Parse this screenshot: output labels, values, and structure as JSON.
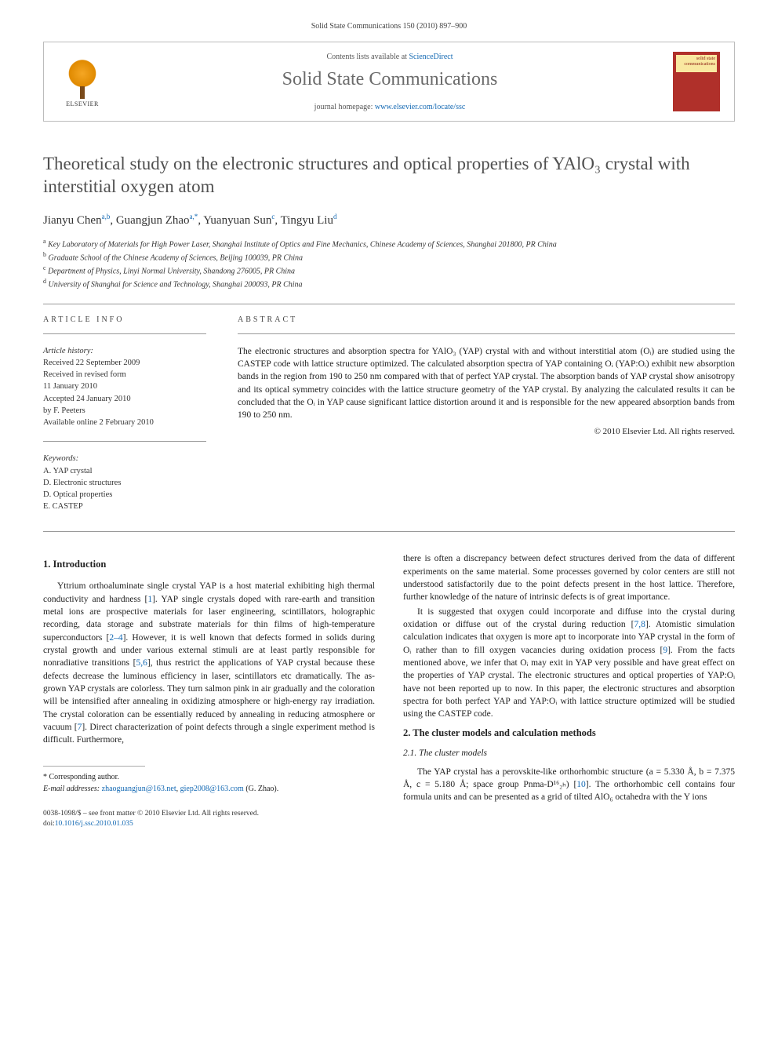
{
  "topLine": "Solid State Communications 150 (2010) 897–900",
  "header": {
    "contentsPrefix": "Contents lists available at ",
    "contentsLink": "ScienceDirect",
    "journalName": "Solid State Communications",
    "homepagePrefix": "journal homepage: ",
    "homepageLink": "www.elsevier.com/locate/ssc",
    "elsevier": "ELSEVIER",
    "coverText": "solid state communications"
  },
  "title": "Theoretical study on the electronic structures and optical properties of YAlO₃ crystal with interstitial oxygen atom",
  "authors": [
    {
      "name": "Jianyu Chen",
      "sup": "a,b"
    },
    {
      "name": "Guangjun Zhao",
      "sup": "a,*"
    },
    {
      "name": "Yuanyuan Sun",
      "sup": "c"
    },
    {
      "name": "Tingyu Liu",
      "sup": "d"
    }
  ],
  "affiliations": [
    {
      "sup": "a",
      "text": "Key Laboratory of Materials for High Power Laser, Shanghai Institute of Optics and Fine Mechanics, Chinese Academy of Sciences, Shanghai 201800, PR China"
    },
    {
      "sup": "b",
      "text": "Graduate School of the Chinese Academy of Sciences, Beijing 100039, PR China"
    },
    {
      "sup": "c",
      "text": "Department of Physics, Linyi Normal University, Shandong 276005, PR China"
    },
    {
      "sup": "d",
      "text": "University of Shanghai for Science and Technology, Shanghai 200093, PR China"
    }
  ],
  "infoLabel": "ARTICLE INFO",
  "abstractLabel": "ABSTRACT",
  "history": {
    "hdr": "Article history:",
    "lines": [
      "Received 22 September 2009",
      "Received in revised form",
      "11 January 2010",
      "Accepted 24 January 2010",
      "by F. Peeters",
      "Available online 2 February 2010"
    ]
  },
  "keywords": {
    "hdr": "Keywords:",
    "lines": [
      "A. YAP crystal",
      "D. Electronic structures",
      "D. Optical properties",
      "E. CASTEP"
    ]
  },
  "abstract": "The electronic structures and absorption spectra for YAlO₃ (YAP) crystal with and without interstitial atom (Oᵢ) are studied using the CASTEP code with lattice structure optimized. The calculated absorption spectra of YAP containing Oᵢ (YAP:Oᵢ) exhibit new absorption bands in the region from 190 to 250 nm compared with that of perfect YAP crystal. The absorption bands of YAP crystal show anisotropy and its optical symmetry coincides with the lattice structure geometry of the YAP crystal. By analyzing the calculated results it can be concluded that the Oᵢ in YAP cause significant lattice distortion around it and is responsible for the new appeared absorption bands from 190 to 250 nm.",
  "copyright": "© 2010 Elsevier Ltd. All rights reserved.",
  "sections": {
    "introHdr": "1. Introduction",
    "introP1": "Yttrium orthoaluminate single crystal YAP is a host material exhibiting high thermal conductivity and hardness [1]. YAP single crystals doped with rare-earth and transition metal ions are prospective materials for laser engineering, scintillators, holographic recording, data storage and substrate materials for thin films of high-temperature superconductors [2–4]. However, it is well known that defects formed in solids during crystal growth and under various external stimuli are at least partly responsible for nonradiative transitions [5,6], thus restrict the applications of YAP crystal because these defects decrease the luminous efficiency in laser, scintillators etc dramatically. The as-grown YAP crystals are colorless. They turn salmon pink in air gradually and the coloration will be intensified after annealing in oxidizing atmosphere or high-energy ray irradiation. The crystal coloration can be essentially reduced by annealing in reducing atmosphere or vacuum [7]. Direct characterization of point defects through a single experiment method is difficult. Furthermore,",
    "introP2": "there is often a discrepancy between defect structures derived from the data of different experiments on the same material. Some processes governed by color centers are still not understood satisfactorily due to the point defects present in the host lattice. Therefore, further knowledge of the nature of intrinsic defects is of great importance.",
    "introP3": "It is suggested that oxygen could incorporate and diffuse into the crystal during oxidation or diffuse out of the crystal during reduction [7,8]. Atomistic simulation calculation indicates that oxygen is more apt to incorporate into YAP crystal in the form of Oᵢ rather than to fill oxygen vacancies during oxidation process [9]. From the facts mentioned above, we infer that Oᵢ may exit in YAP very possible and have great effect on the properties of YAP crystal. The electronic structures and optical properties of YAP:Oᵢ have not been reported up to now. In this paper, the electronic structures and absorption spectra for both perfect YAP and YAP:Oᵢ with lattice structure optimized will be studied using the CASTEP code.",
    "methodsHdr": "2. The cluster models and calculation methods",
    "clusterHdr": "2.1. The cluster models",
    "clusterP1": "The YAP crystal has a perovskite-like orthorhombic structure (a = 5.330 Å, b = 7.375 Å, c = 5.180 Å; space group Pnma-D¹⁶₂ₕ) [10]. The orthorhombic cell contains four formula units and can be presented as a grid of tilted AlO₆ octahedra with the Y ions"
  },
  "corr": {
    "star": "* Corresponding author.",
    "emailLabel": "E-mail addresses: ",
    "email1": "zhaoguangjun@163.net",
    "email2": "giep2008@163.com",
    "tail": " (G. Zhao)."
  },
  "bottom": {
    "line1": "0038-1098/$ – see front matter © 2010 Elsevier Ltd. All rights reserved.",
    "doiLabel": "doi:",
    "doi": "10.1016/j.ssc.2010.01.035"
  }
}
